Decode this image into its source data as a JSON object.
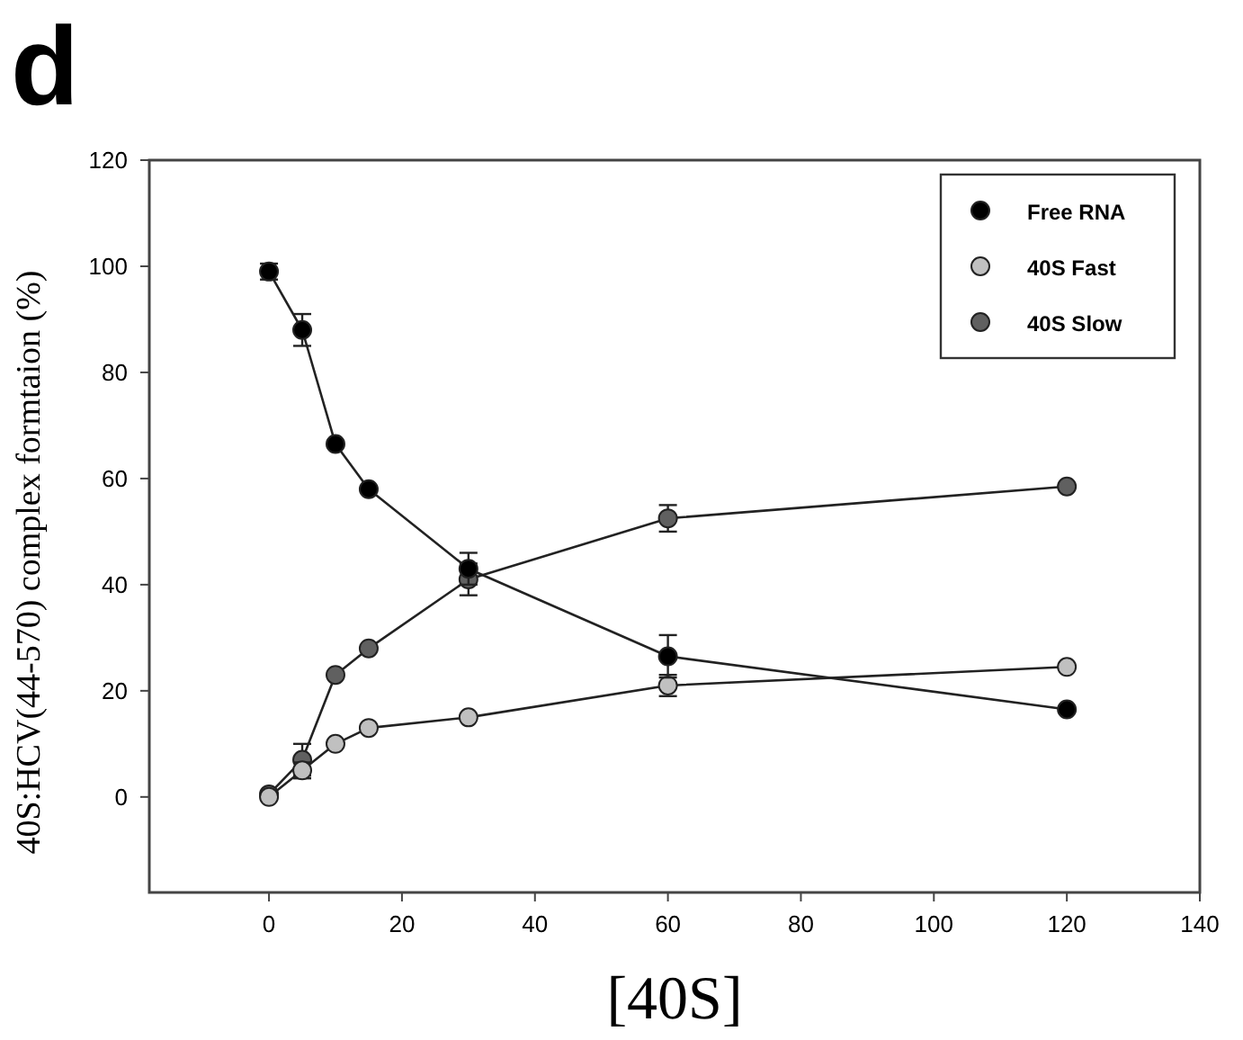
{
  "chart_data": {
    "type": "line",
    "title": "d",
    "xlabel": "[40S]",
    "ylabel": "40S:HCV(44-570) complex formtaion (%)",
    "x": [
      0,
      5,
      10,
      15,
      30,
      60,
      120
    ],
    "series": [
      {
        "name": "Free RNA",
        "color": "#000000",
        "values": [
          99,
          88,
          66.5,
          58,
          43,
          26.5,
          16.5
        ],
        "errors": [
          1.5,
          3,
          null,
          null,
          3,
          4,
          null
        ]
      },
      {
        "name": "40S Fast",
        "color": "#c0c0c0",
        "values": [
          0,
          5,
          10,
          13,
          15,
          21,
          24.5
        ],
        "errors": [
          null,
          1.5,
          null,
          null,
          null,
          2,
          null
        ]
      },
      {
        "name": "40S Slow",
        "color": "#606060",
        "values": [
          0.5,
          7,
          23,
          28,
          41,
          52.5,
          58.5
        ],
        "errors": [
          null,
          3,
          null,
          null,
          3,
          2.5,
          null
        ]
      }
    ],
    "xlim": [
      -18,
      140
    ],
    "xticks": [
      0,
      20,
      40,
      60,
      80,
      100,
      120,
      140
    ],
    "ylim": [
      -18,
      120
    ],
    "yticks": [
      0,
      20,
      40,
      60,
      80,
      100,
      120
    ],
    "legend": "top right",
    "marker": "circle",
    "line_style": "solid",
    "grid": false
  }
}
